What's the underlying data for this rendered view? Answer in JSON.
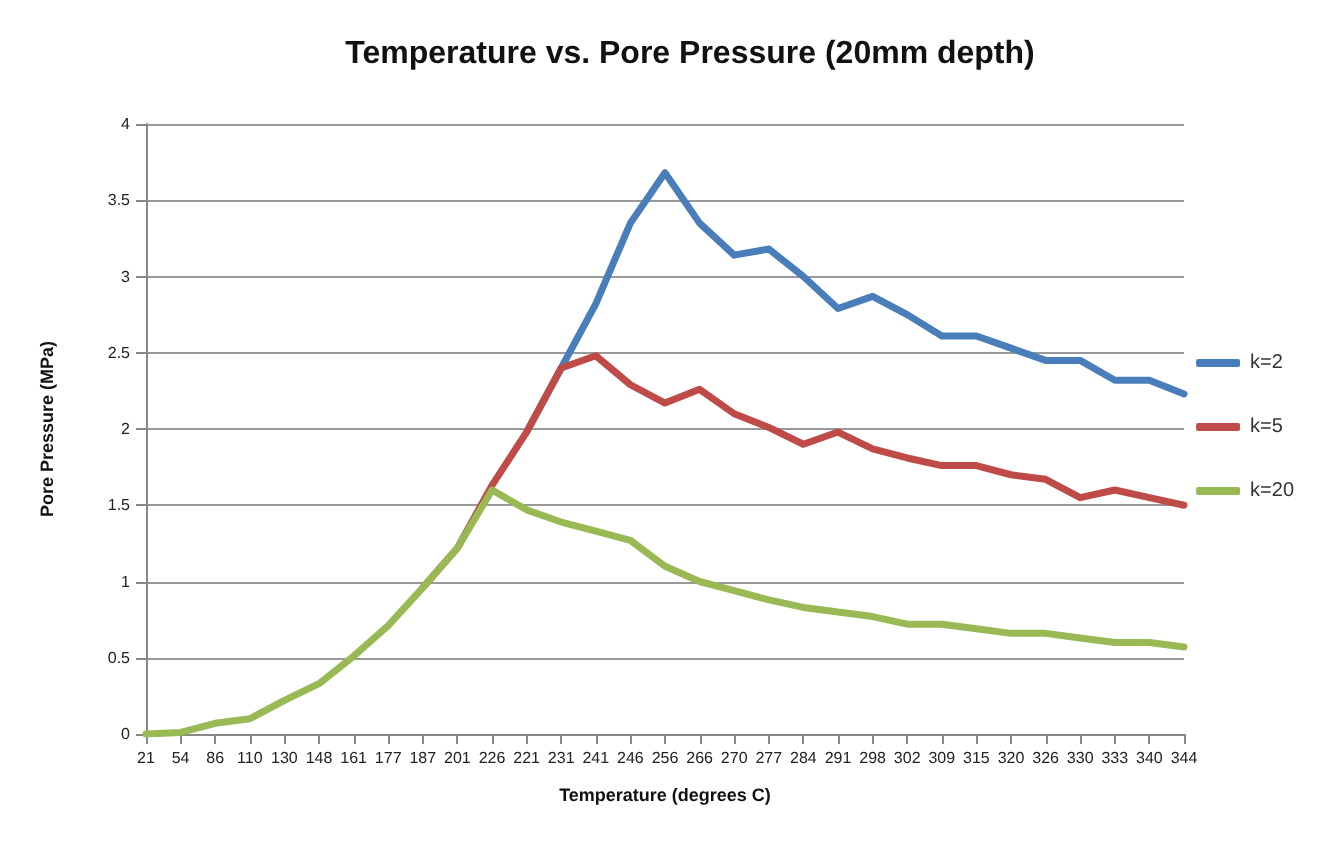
{
  "chart_data": {
    "type": "line",
    "title": "Temperature vs. Pore Pressure (20mm depth)",
    "xlabel": "Temperature (degrees C)",
    "ylabel": "Pore Pressure (MPa)",
    "categories": [
      "21",
      "54",
      "86",
      "110",
      "130",
      "148",
      "161",
      "177",
      "187",
      "201",
      "226",
      "221",
      "231",
      "241",
      "246",
      "256",
      "266",
      "270",
      "277",
      "284",
      "291",
      "298",
      "302",
      "309",
      "315",
      "320",
      "326",
      "330",
      "333",
      "340",
      "344"
    ],
    "series": [
      {
        "name": "k=2",
        "color": "#4a7ebb",
        "values": [
          null,
          null,
          null,
          null,
          null,
          null,
          null,
          null,
          null,
          null,
          null,
          1.98,
          2.4,
          2.82,
          3.35,
          3.68,
          3.35,
          3.14,
          3.18,
          3.0,
          2.79,
          2.87,
          2.75,
          2.61,
          2.61,
          2.53,
          2.45,
          2.45,
          2.32,
          2.32,
          2.23
        ]
      },
      {
        "name": "k=5",
        "color": "#be4b48",
        "values": [
          null,
          null,
          null,
          null,
          null,
          null,
          null,
          null,
          0.96,
          1.22,
          1.63,
          1.98,
          2.4,
          2.48,
          2.29,
          2.17,
          2.26,
          2.1,
          2.01,
          1.9,
          1.98,
          1.87,
          1.81,
          1.76,
          1.76,
          1.7,
          1.67,
          1.55,
          1.6,
          1.55,
          1.5
        ]
      },
      {
        "name": "k=20",
        "color": "#98b954",
        "values": [
          0,
          0.01,
          0.07,
          0.1,
          0.22,
          0.33,
          0.51,
          0.71,
          0.96,
          1.22,
          1.6,
          1.47,
          1.39,
          1.33,
          1.27,
          1.1,
          1.0,
          0.94,
          0.88,
          0.83,
          0.8,
          0.77,
          0.72,
          0.72,
          0.69,
          0.66,
          0.66,
          0.63,
          0.6,
          0.6,
          0.57
        ]
      }
    ],
    "ylim": [
      0,
      4
    ],
    "yticks": [
      0,
      0.5,
      1,
      1.5,
      2,
      2.5,
      3,
      3.5,
      4
    ],
    "grid": "y",
    "legend": "right",
    "marker": "none",
    "line_style": "solid"
  }
}
